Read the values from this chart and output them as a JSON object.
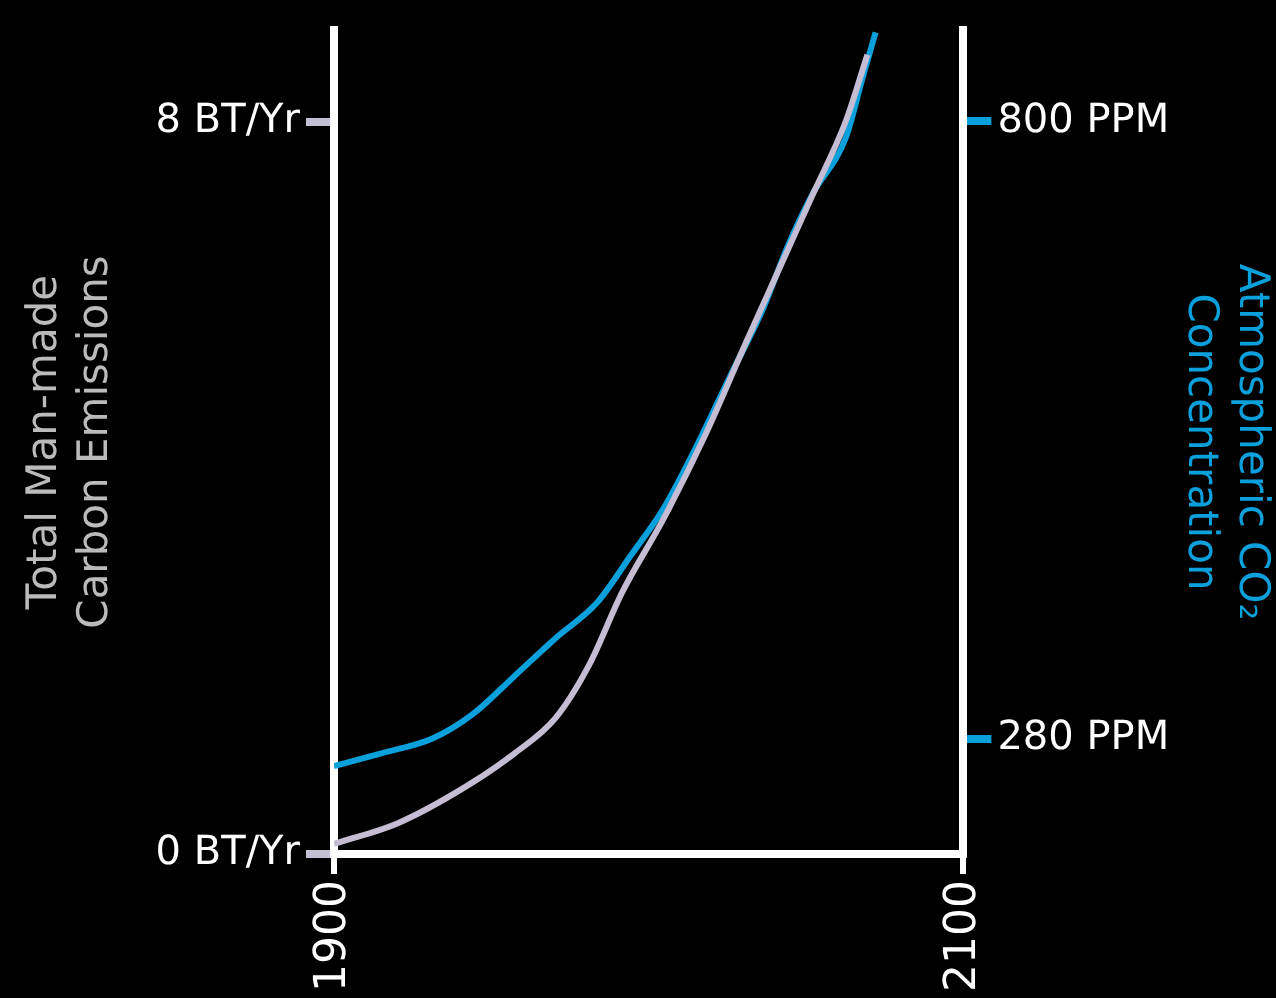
{
  "chart_data": {
    "type": "line",
    "ylabel": "Total Man-made\nCarbon Emissions",
    "y2label": "Atmospheric CO₂\nConcentration",
    "xlim": [
      1900,
      2100
    ],
    "xticks": [
      1900,
      2100
    ],
    "ylim": [
      0,
      9
    ],
    "yticks": [
      {
        "value": 0,
        "label": "0 BT/Yr"
      },
      {
        "value": 8,
        "label": "8 BT/Yr"
      }
    ],
    "y2lim": [
      183,
      877
    ],
    "y2ticks": [
      {
        "value": 280,
        "label": "280 PPM"
      },
      {
        "value": 800,
        "label": "800 PPM"
      }
    ],
    "grid": false,
    "legend": false,
    "marker": "none",
    "line_style": "solid",
    "series": [
      {
        "color": "#c4bdd3",
        "x": [
          1900,
          1920.5,
          1941.6,
          1957.4,
          1970.5,
          1981,
          1991.6,
          2004.7,
          2017.9,
          2031.1,
          2041.6,
          2052.1,
          2062.6,
          2069.5
        ],
        "values": [
          0.11,
          0.34,
          0.73,
          1.1,
          1.49,
          2.06,
          2.86,
          3.66,
          4.57,
          5.6,
          6.4,
          7.2,
          8.0,
          8.73
        ]
      },
      {
        "color": "#0aa0dc",
        "axis": "y2",
        "x": [
          1900,
          1915.3,
          1931.1,
          1944.2,
          1957.4,
          1970.5,
          1983.7,
          1994.2,
          2004.7,
          2015.3,
          2025.8,
          2036.3,
          2044.2,
          2052.1,
          2062.6,
          2067.9,
          2072.1
        ],
        "values": [
          257,
          268,
          280,
          301,
          333,
          365,
          395,
          434,
          474,
          527,
          585,
          642,
          695,
          739,
          786,
          836,
          875
        ]
      }
    ]
  }
}
